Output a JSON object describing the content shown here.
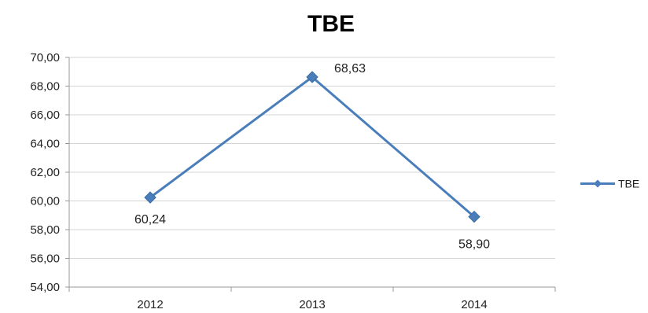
{
  "chart_data": {
    "type": "line",
    "title": "TBE",
    "categories": [
      "2012",
      "2013",
      "2014"
    ],
    "series": [
      {
        "name": "TBE",
        "values": [
          60.24,
          68.63,
          58.9
        ],
        "labels": [
          "60,24",
          "68,63",
          "58,90"
        ]
      }
    ],
    "ylim": [
      54,
      70
    ],
    "yticks": [
      54,
      56,
      58,
      60,
      62,
      64,
      66,
      68,
      70
    ],
    "ytick_labels": [
      "54,00",
      "56,00",
      "58,00",
      "60,00",
      "62,00",
      "64,00",
      "66,00",
      "68,00",
      "70,00"
    ],
    "grid": true,
    "legend": "right",
    "color": "#4a7ebb",
    "marker": "diamond"
  }
}
